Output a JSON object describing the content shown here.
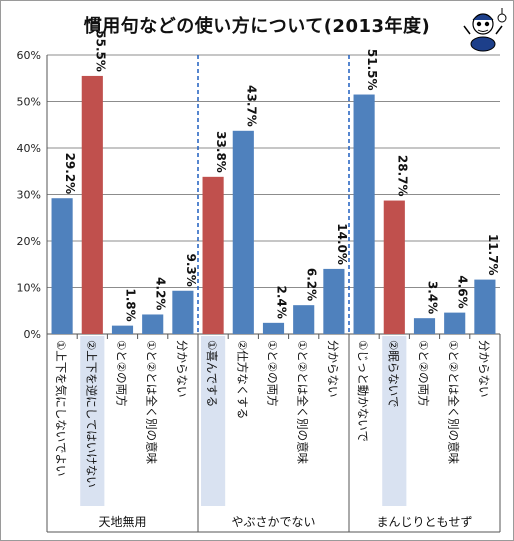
{
  "chart_data": {
    "type": "bar",
    "title": "慣用句などの使い方について(2013年度)",
    "ylim": [
      0,
      60
    ],
    "yticks": [
      "0%",
      "10%",
      "20%",
      "30%",
      "40%",
      "50%",
      "60%"
    ],
    "grid": true,
    "colors": {
      "correct": "#4f81bd",
      "highlight": "#c0504d",
      "label_bg": "#d9e2f1"
    },
    "groups": [
      {
        "name": "天地無用",
        "bars": [
          {
            "label": "①上下を気にしないでよい",
            "value": 29.2,
            "value_label": "29.2%",
            "highlight": false
          },
          {
            "label": "②上下を逆にしてはいけない",
            "value": 55.5,
            "value_label": "55.5%",
            "highlight": true
          },
          {
            "label": "①と②の両方",
            "value": 1.8,
            "value_label": "1.8%",
            "highlight": false
          },
          {
            "label": "①と②とは全く別の意味",
            "value": 4.2,
            "value_label": "4.2%",
            "highlight": false
          },
          {
            "label": "分からない",
            "value": 9.3,
            "value_label": "9.3%",
            "highlight": false
          }
        ]
      },
      {
        "name": "やぶさかでない",
        "bars": [
          {
            "label": "①喜んでする",
            "value": 33.8,
            "value_label": "33.8%",
            "highlight": true
          },
          {
            "label": "②仕方なくする",
            "value": 43.7,
            "value_label": "43.7%",
            "highlight": false
          },
          {
            "label": "①と②の両方",
            "value": 2.4,
            "value_label": "2.4%",
            "highlight": false
          },
          {
            "label": "①と②とは全く別の意味",
            "value": 6.2,
            "value_label": "6.2%",
            "highlight": false
          },
          {
            "label": "分からない",
            "value": 14.0,
            "value_label": "14.0%",
            "highlight": false
          }
        ]
      },
      {
        "name": "まんじりともせず",
        "bars": [
          {
            "label": "①じっと動かないで",
            "value": 51.5,
            "value_label": "51.5%",
            "highlight": false
          },
          {
            "label": "②眠らないで",
            "value": 28.7,
            "value_label": "28.7%",
            "highlight": true
          },
          {
            "label": "①と②の両方",
            "value": 3.4,
            "value_label": "3.4%",
            "highlight": false
          },
          {
            "label": "①と②とは全く別の意味",
            "value": 4.6,
            "value_label": "4.6%",
            "highlight": false
          },
          {
            "label": "分からない",
            "value": 11.7,
            "value_label": "11.7%",
            "highlight": false
          }
        ]
      }
    ]
  },
  "mascot_icon": "mascot-character-icon"
}
